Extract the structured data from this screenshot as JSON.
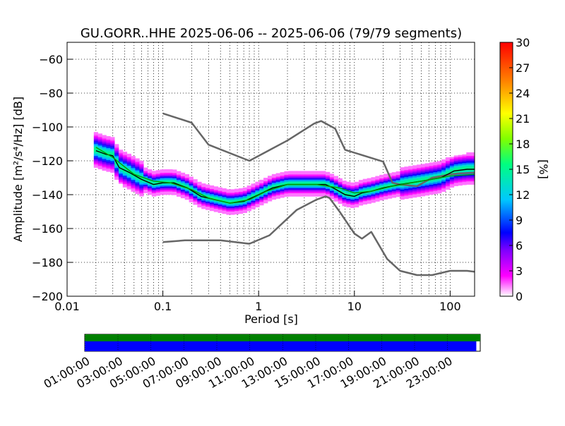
{
  "chart_data": [
    {
      "type": "heatmap",
      "title": "GU.GORR..HHE   2025-06-06 -- 2025-06-06  (79/79 segments)",
      "xlabel": "Period [s]",
      "ylabel": "Amplitude [m²/s⁴/Hz] [dB]",
      "xscale": "log",
      "xlim": [
        0.01,
        180
      ],
      "ylim": [
        -200,
        -50
      ],
      "xticks": [
        0.01,
        0.1,
        1,
        10,
        100
      ],
      "xtick_labels": [
        "0.01",
        "0.1",
        "1",
        "10",
        "100"
      ],
      "yticks": [
        -200,
        -180,
        -160,
        -140,
        -120,
        -100,
        -80,
        -60
      ],
      "ytick_labels": [
        "−200",
        "−180",
        "−160",
        "−140",
        "−120",
        "−100",
        "−80",
        "−60"
      ],
      "grid": true,
      "colorbar": {
        "label": "[%]",
        "range": [
          0,
          30
        ],
        "ticks": [
          0,
          3,
          6,
          9,
          12,
          15,
          18,
          21,
          24,
          27,
          30
        ],
        "tick_labels": [
          "0",
          "3",
          "6",
          "9",
          "12",
          "15",
          "18",
          "21",
          "24",
          "27",
          "30"
        ],
        "colors": [
          "#ffffff",
          "#ff00ff",
          "#8000ff",
          "#0000ff",
          "#00c8ff",
          "#00ff80",
          "#aaff00",
          "#ffff00",
          "#ff8000",
          "#ff0000"
        ]
      },
      "series": [
        {
          "name": "",
          "color": "#666666",
          "x": [
            0.1,
            0.2,
            0.3,
            0.8,
            2,
            3.8,
            4.5,
            6.3,
            8,
            20,
            25,
            30,
            45,
            65,
            100,
            120,
            180
          ],
          "y": [
            -92,
            -97.5,
            -110.5,
            -120,
            -108,
            -98,
            -96.5,
            -101,
            -113.5,
            -120.5,
            -133,
            -134,
            -135,
            -130,
            -128,
            -127.5,
            -127
          ]
        },
        {
          "name": "",
          "color": "#666666",
          "x": [
            0.1,
            0.17,
            0.4,
            0.8,
            1.3,
            2.5,
            4,
            5,
            5.5,
            7,
            10,
            12,
            15,
            22,
            30,
            45,
            65,
            100,
            150,
            180
          ],
          "y": [
            -168,
            -167,
            -167,
            -169,
            -164,
            -149,
            -143,
            -141,
            -142,
            -150,
            -163,
            -166,
            -162,
            -178,
            -185,
            -187.5,
            -187.5,
            -185,
            -185,
            -185.5
          ]
        },
        {
          "name": "",
          "color": "#000000",
          "x": [
            0.02,
            0.025,
            0.03,
            0.035,
            0.045,
            0.06,
            0.08,
            0.1,
            0.13,
            0.18,
            0.25,
            0.35,
            0.5,
            0.7,
            1,
            1.4,
            2,
            3,
            4,
            5,
            6,
            8,
            10,
            12,
            15,
            20,
            30,
            50,
            80,
            110,
            150,
            180
          ],
          "y": [
            -114,
            -116,
            -117,
            -124,
            -127,
            -131,
            -134,
            -133,
            -133,
            -136,
            -141,
            -143,
            -145,
            -144,
            -140,
            -136,
            -134,
            -134,
            -134,
            -134,
            -136,
            -140,
            -141,
            -139,
            -138,
            -136,
            -134,
            -132,
            -130,
            -126,
            -125,
            -125
          ]
        },
        {
          "name": "",
          "color": "#00a000",
          "x": [
            0.02,
            0.03,
            0.05,
            0.08,
            0.12,
            0.2,
            0.3,
            0.5,
            0.8,
            1.2,
            2,
            4,
            7,
            10,
            15,
            25,
            50,
            100,
            180
          ],
          "y": [
            -112,
            -118,
            -128,
            -132,
            -133,
            -137,
            -142,
            -145,
            -143,
            -138,
            -134,
            -134,
            -136,
            -139,
            -138,
            -135,
            -132,
            -129,
            -128
          ]
        }
      ]
    },
    {
      "type": "timeline",
      "tick_labels": [
        "01:00:00",
        "03:00:00",
        "05:00:00",
        "07:00:00",
        "09:00:00",
        "11:00:00",
        "13:00:00",
        "15:00:00",
        "17:00:00",
        "19:00:00",
        "21:00:00",
        "23:00:00"
      ],
      "series": [
        {
          "name": "",
          "color": "#008000",
          "coverage": 1.0
        },
        {
          "name": "",
          "color": "#0000ff",
          "coverage": 0.99
        }
      ]
    }
  ]
}
